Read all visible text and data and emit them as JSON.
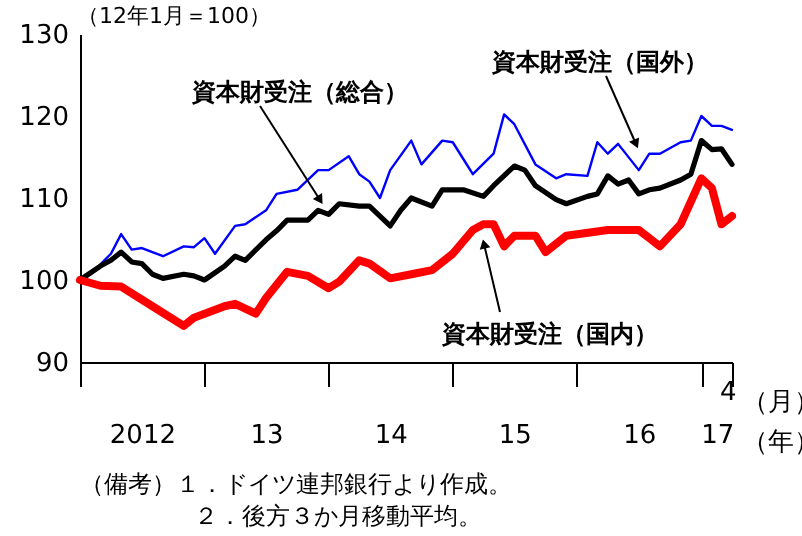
{
  "chart_data": {
    "type": "line",
    "ylabel": "（12年1月＝100）",
    "xlim": [
      "2012-01",
      "2017-04"
    ],
    "xticks": [
      {
        "value": "2012-01",
        "label": null
      },
      {
        "value": "2012-07",
        "label": "2012"
      },
      {
        "value": "2013-01",
        "label": null
      },
      {
        "value": "2013-07",
        "label": "13"
      },
      {
        "value": "2014-01",
        "label": null
      },
      {
        "value": "2014-07",
        "label": "14"
      },
      {
        "value": "2015-01",
        "label": null
      },
      {
        "value": "2015-07",
        "label": "15"
      },
      {
        "value": "2016-01",
        "label": null
      },
      {
        "value": "2016-07",
        "label": "16"
      },
      {
        "value": "2017-01",
        "label": null
      },
      {
        "value": "2017-02-15",
        "label": "17"
      },
      {
        "value": "2017-04",
        "label": null
      }
    ],
    "ylim": [
      90,
      130
    ],
    "yticks": [
      90,
      100,
      110,
      120,
      130
    ],
    "series": [
      {
        "name": "資本財受注（国外）",
        "color": "#0000ff",
        "x": [
          "2012-01",
          "2012-02",
          "2012-04",
          "2012-05",
          "2012-06",
          "2012-07",
          "2012-09",
          "2012-11",
          "2012-12",
          "2013-01",
          "2013-02",
          "2013-04",
          "2013-05",
          "2013-07",
          "2013-08",
          "2013-10",
          "2013-12",
          "2014-01",
          "2014-03",
          "2014-04",
          "2014-05",
          "2014-06",
          "2014-07",
          "2014-09",
          "2014-10",
          "2014-12",
          "2015-01",
          "2015-03",
          "2015-05",
          "2015-06",
          "2015-07",
          "2015-09",
          "2015-11",
          "2015-12",
          "2016-02",
          "2016-03",
          "2016-04",
          "2016-05",
          "2016-07",
          "2016-08",
          "2016-09",
          "2016-11",
          "2016-12",
          "2017-01",
          "2017-02",
          "2017-03",
          "2017-04"
        ],
        "values": [
          100,
          100.7,
          103.2,
          105.6,
          103.7,
          103.9,
          102.9,
          104.1,
          104,
          105.1,
          103.2,
          106.6,
          106.8,
          108.5,
          110.5,
          111,
          113.4,
          113.4,
          115.1,
          112.9,
          112,
          110,
          113.4,
          117,
          114.1,
          117,
          116.8,
          112.9,
          115.4,
          120.2,
          119,
          114.1,
          112.4,
          112.9,
          112.7,
          116.8,
          115.4,
          116.6,
          113.4,
          115.4,
          115.4,
          116.8,
          117,
          120,
          118.8,
          118.8,
          118.3
        ]
      },
      {
        "name": "資本財受注（総合）",
        "color": "#000000",
        "x": [
          "2012-01",
          "2012-03",
          "2012-04",
          "2012-05",
          "2012-06",
          "2012-07",
          "2012-08",
          "2012-09",
          "2012-11",
          "2012-12",
          "2013-01",
          "2013-03",
          "2013-04",
          "2013-05",
          "2013-07",
          "2013-08",
          "2013-09",
          "2013-11",
          "2013-12",
          "2014-01",
          "2014-02",
          "2014-04",
          "2014-05",
          "2014-07",
          "2014-08",
          "2014-09",
          "2014-11",
          "2014-12",
          "2015-02",
          "2015-04",
          "2015-05",
          "2015-07",
          "2015-08",
          "2015-09",
          "2015-11",
          "2015-12",
          "2016-02",
          "2016-03",
          "2016-04",
          "2016-05",
          "2016-06",
          "2016-07",
          "2016-08",
          "2016-09",
          "2016-11",
          "2016-12",
          "2017-01",
          "2017-02",
          "2017-03",
          "2017-04"
        ],
        "values": [
          100,
          101.7,
          102.4,
          103.4,
          102.2,
          102,
          100.7,
          100.2,
          100.7,
          100.5,
          100,
          101.7,
          102.9,
          102.4,
          104.9,
          106,
          107.3,
          107.3,
          108.5,
          108,
          109.3,
          109,
          109,
          106.6,
          108.5,
          110,
          109,
          111,
          111,
          110.2,
          111.5,
          113.9,
          113.4,
          111.5,
          109.8,
          109.3,
          110.2,
          110.5,
          112.7,
          111.7,
          112.2,
          110.5,
          111,
          111.2,
          112.2,
          112.9,
          117,
          115.9,
          116,
          114.1
        ]
      },
      {
        "name": "資本財受注（国内）",
        "color": "#ff0000",
        "x": [
          "2012-01",
          "2012-03",
          "2012-05",
          "2012-08",
          "2012-11",
          "2012-12",
          "2013-03",
          "2013-04",
          "2013-06",
          "2013-07",
          "2013-09",
          "2013-11",
          "2014-01",
          "2014-02",
          "2014-04",
          "2014-05",
          "2014-07",
          "2014-09",
          "2014-11",
          "2015-01",
          "2015-03",
          "2015-04",
          "2015-05",
          "2015-06",
          "2015-07",
          "2015-09",
          "2015-10",
          "2015-12",
          "2016-04",
          "2016-07",
          "2016-08",
          "2016-09",
          "2016-11",
          "2017-01",
          "2017-02",
          "2017-03",
          "2017-04"
        ],
        "values": [
          100,
          99.3,
          99.2,
          96.8,
          94.4,
          95.4,
          96.8,
          97.1,
          95.9,
          97.8,
          101,
          100.5,
          99,
          99.8,
          102.4,
          102,
          100.2,
          100.7,
          101.2,
          103.2,
          106.1,
          106.8,
          106.8,
          104.1,
          105.4,
          105.4,
          103.4,
          105.4,
          106.1,
          106.1,
          105.1,
          104.1,
          106.8,
          112.4,
          111.2,
          106.8,
          107.8
        ]
      }
    ],
    "annotations": [
      "4",
      "（月）",
      "（年）",
      "（備考）１．ドイツ連邦銀行より作成。",
      "２．後方３か月移動平均。"
    ]
  }
}
